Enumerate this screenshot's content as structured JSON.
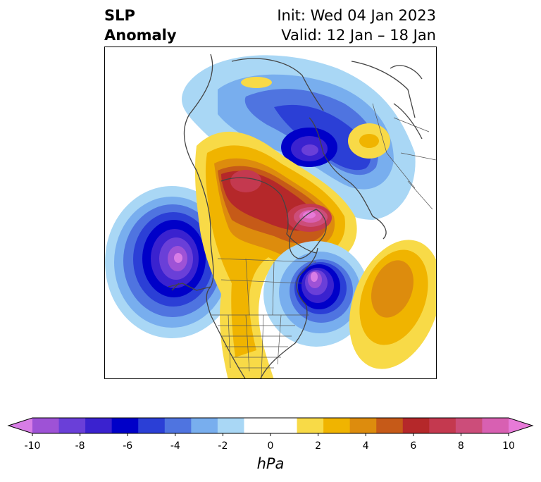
{
  "title": {
    "left_line1": "SLP",
    "left_line2": "Anomaly",
    "right_line1": "Init: Wed 04 Jan 2023",
    "right_line2": "Valid: 12 Jan – 18 Jan"
  },
  "map": {
    "projection": "polar stereographic (North America / Arctic)",
    "features": [
      "coastlines",
      "country-borders",
      "us-state-borders"
    ],
    "anomaly_centers": [
      {
        "region": "north-pacific",
        "sign": "negative",
        "min_hpa": -10
      },
      {
        "region": "arctic-ocean",
        "sign": "negative",
        "min_hpa": -7
      },
      {
        "region": "north-atlantic-newfoundland",
        "sign": "negative",
        "min_hpa": -9
      },
      {
        "region": "canada-hudson-bay",
        "sign": "positive",
        "max_hpa": 9
      },
      {
        "region": "mid-atlantic",
        "sign": "positive",
        "max_hpa": 4
      },
      {
        "region": "northern-europe",
        "sign": "positive",
        "max_hpa": 2
      }
    ]
  },
  "colorbar": {
    "unit": "hPa",
    "ticks": [
      "-10",
      "-8",
      "-6",
      "-4",
      "-2",
      "0",
      "2",
      "4",
      "6",
      "8",
      "10"
    ],
    "colors": [
      "#9e52d6",
      "#6a3fd8",
      "#3a22cf",
      "#0000c8",
      "#2b3fd6",
      "#4f74e0",
      "#78aeee",
      "#a9d7f5",
      "#ffffff",
      "#ffffff",
      "#f8da47",
      "#f0b400",
      "#dd8c0d",
      "#c65a18",
      "#b5282a",
      "#c4394f",
      "#cc4d7a",
      "#d860b2"
    ],
    "under_color": "#d87de6",
    "over_color": "#e77ad8"
  }
}
